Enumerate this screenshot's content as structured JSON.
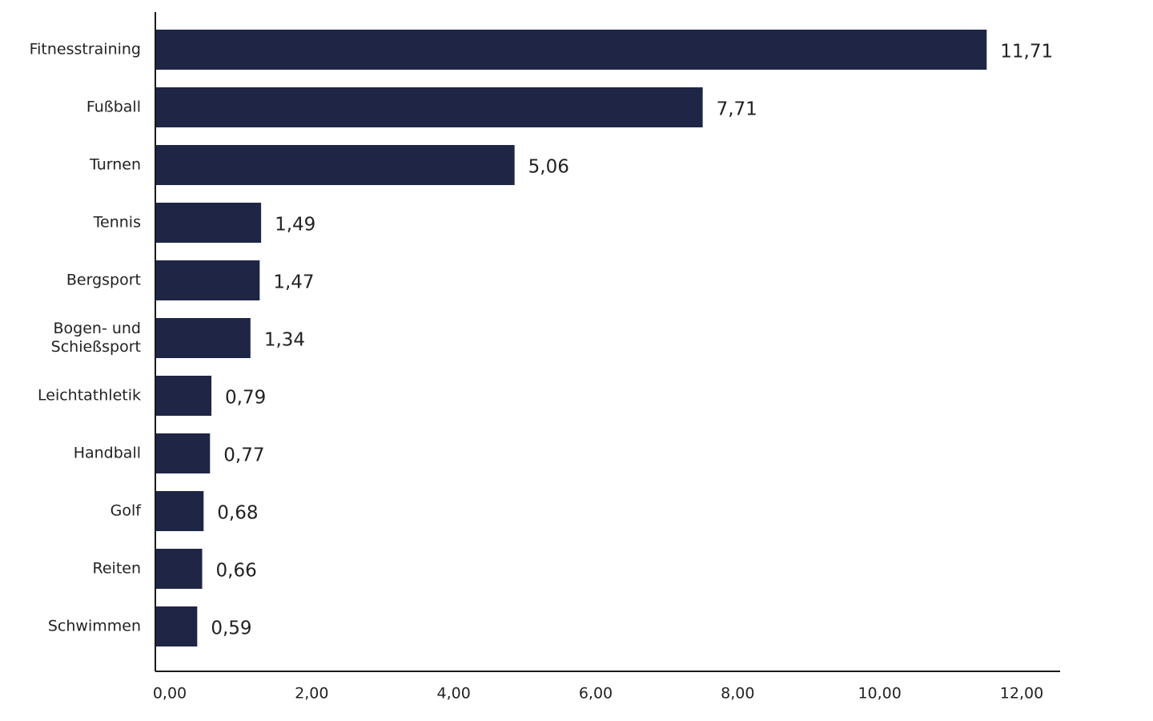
{
  "chart_data": {
    "type": "bar",
    "orientation": "horizontal",
    "categories": [
      "Fitnesstraining",
      "Fußball",
      "Turnen",
      "Tennis",
      "Bergsport",
      "Bogen- und Schießsport",
      "Leichtathletik",
      "Handball",
      "Golf",
      "Reiten",
      "Schwimmen"
    ],
    "category_lines": [
      [
        "Fitnesstraining"
      ],
      [
        "Fußball"
      ],
      [
        "Turnen"
      ],
      [
        "Tennis"
      ],
      [
        "Bergsport"
      ],
      [
        "Bogen- und",
        "Schießsport"
      ],
      [
        "Leichtathletik"
      ],
      [
        "Handball"
      ],
      [
        "Golf"
      ],
      [
        "Reiten"
      ],
      [
        "Schwimmen"
      ]
    ],
    "values": [
      11.71,
      7.71,
      5.06,
      1.49,
      1.47,
      1.34,
      0.79,
      0.77,
      0.68,
      0.66,
      0.59
    ],
    "value_labels": [
      "11,71",
      "7,71",
      "5,06",
      "1,49",
      "1,47",
      "1,34",
      "0,79",
      "0,77",
      "0,68",
      "0,66",
      "0,59"
    ],
    "xticks": [
      0,
      2,
      4,
      6,
      8,
      10,
      12
    ],
    "xtick_labels": [
      "0,00",
      "2,00",
      "4,00",
      "6,00",
      "8,00",
      "10,00",
      "12,00"
    ],
    "xlim": [
      0,
      12.2
    ],
    "title": "",
    "xlabel": "",
    "ylabel": "",
    "grid": false,
    "legend": "none",
    "colors": {
      "bar": "#1f2645",
      "axis": "#1a1a1a",
      "text": "#222222"
    }
  }
}
